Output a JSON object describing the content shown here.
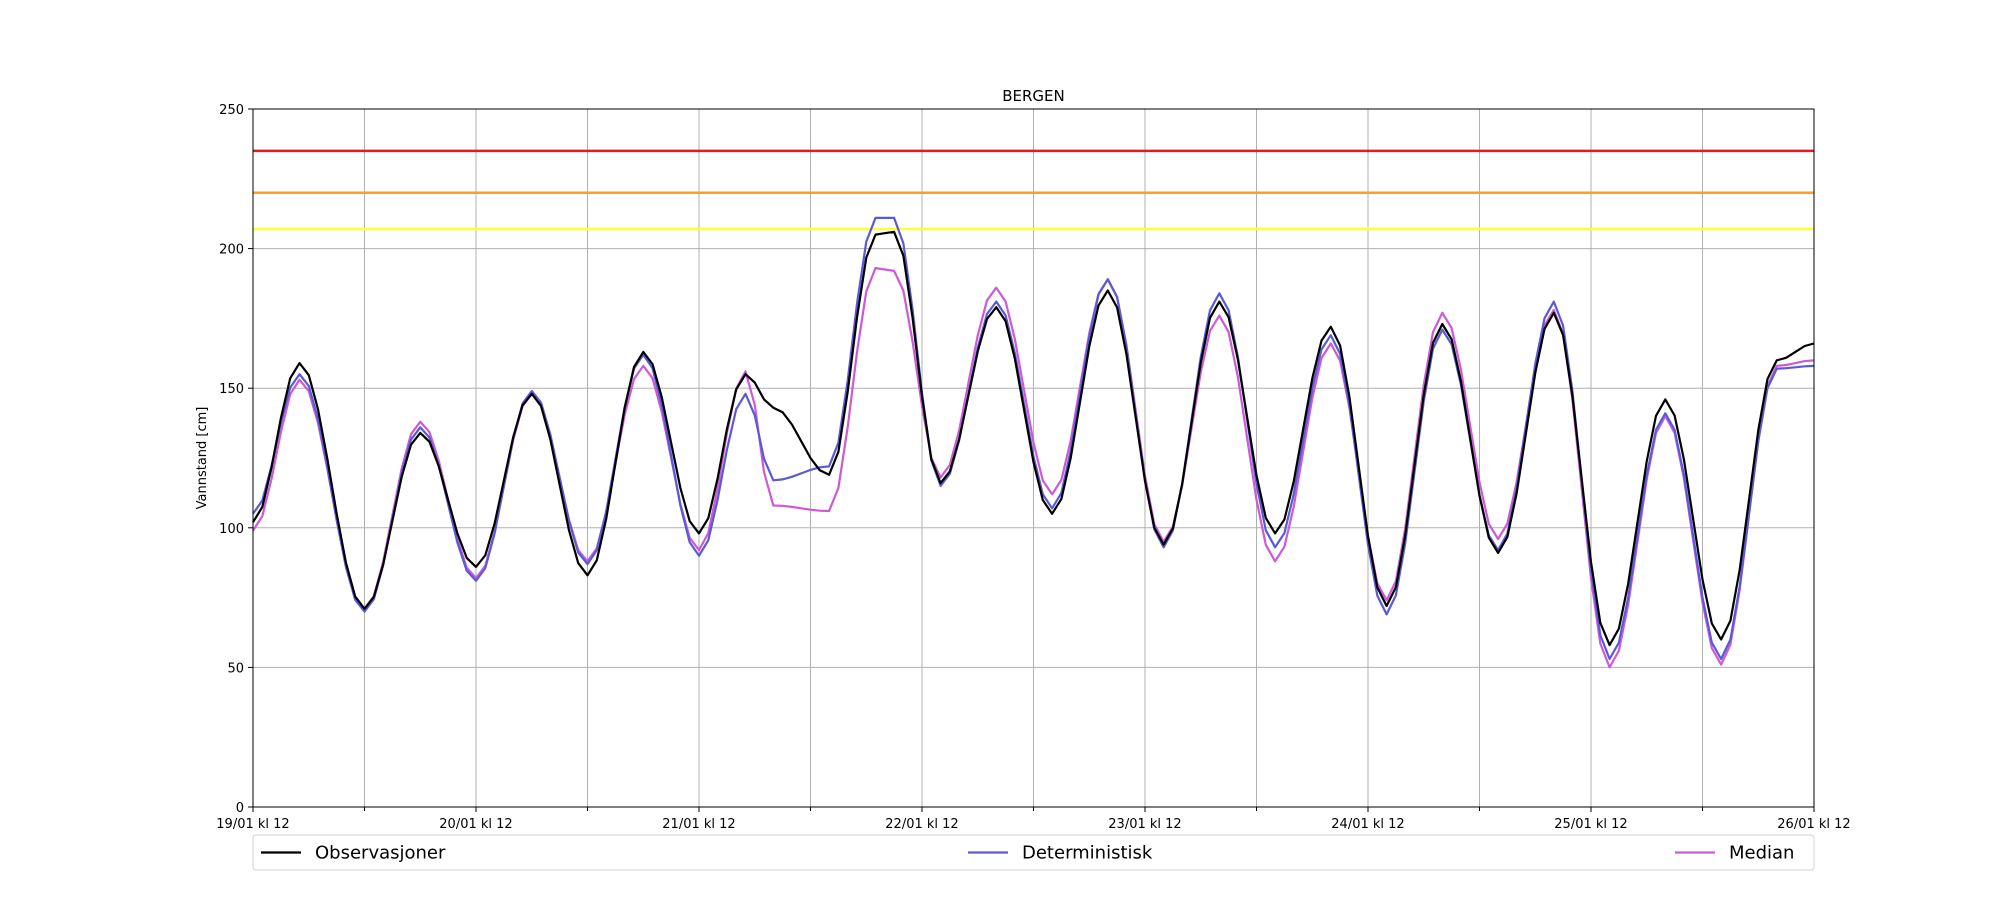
{
  "chart_data": {
    "type": "line",
    "title": "BERGEN",
    "ylabel": "Vannstand [cm]",
    "xlabel": "",
    "ylim": [
      0,
      250
    ],
    "yticks": [
      0,
      50,
      100,
      150,
      200,
      250
    ],
    "xlim": [
      0,
      168
    ],
    "xticks": [
      {
        "x": 0,
        "label": "19/01 kl 12"
      },
      {
        "x": 24,
        "label": "20/01 kl 12"
      },
      {
        "x": 48,
        "label": "21/01 kl 12"
      },
      {
        "x": 72,
        "label": "22/01 kl 12"
      },
      {
        "x": 96,
        "label": "23/01 kl 12"
      },
      {
        "x": 120,
        "label": "24/01 kl 12"
      },
      {
        "x": 144,
        "label": "25/01 kl 12"
      },
      {
        "x": 168,
        "label": "26/01 kl 12"
      }
    ],
    "minor_xticks": [
      12,
      36,
      60,
      84,
      108,
      132,
      156
    ],
    "grid": true,
    "legend_position": "bottom",
    "thresholds": [
      {
        "value": 235,
        "color": "#e41a1c"
      },
      {
        "value": 220,
        "color": "#ff9f1c"
      },
      {
        "value": 207,
        "color": "#ffff33"
      }
    ],
    "extrema": {
      "t": [
        0,
        5,
        12,
        18,
        24,
        30,
        36,
        42,
        48,
        53,
        56,
        62,
        67,
        69,
        74,
        80,
        86,
        92,
        98,
        104,
        110,
        116,
        122,
        128,
        134,
        140,
        146,
        152,
        158,
        164,
        168
      ]
    },
    "series": [
      {
        "name": "Observasjoner",
        "color": "#000000",
        "values": [
          102,
          159,
          71,
          134,
          86,
          148,
          83,
          163,
          98,
          155,
          143,
          119,
          205,
          206,
          116,
          179,
          105,
          185,
          94,
          181,
          98,
          172,
          72,
          173,
          91,
          177,
          58,
          146,
          60,
          160,
          166
        ]
      },
      {
        "name": "Deterministisk",
        "color": "#5a5ad6",
        "values": [
          105,
          155,
          70,
          136,
          81,
          149,
          87,
          162,
          90,
          148,
          117,
          122,
          211,
          211,
          115,
          181,
          107,
          189,
          93,
          184,
          93,
          169,
          69,
          171,
          92,
          181,
          53,
          141,
          53,
          157,
          158
        ]
      },
      {
        "name": "Median",
        "color": "#cc5ad6",
        "values": [
          99,
          153,
          71,
          138,
          82,
          148,
          88,
          158,
          92,
          156,
          108,
          106,
          193,
          192,
          118,
          186,
          112,
          189,
          95,
          176,
          88,
          166,
          74,
          177,
          96,
          178,
          50,
          140,
          51,
          158,
          160
        ]
      }
    ]
  }
}
